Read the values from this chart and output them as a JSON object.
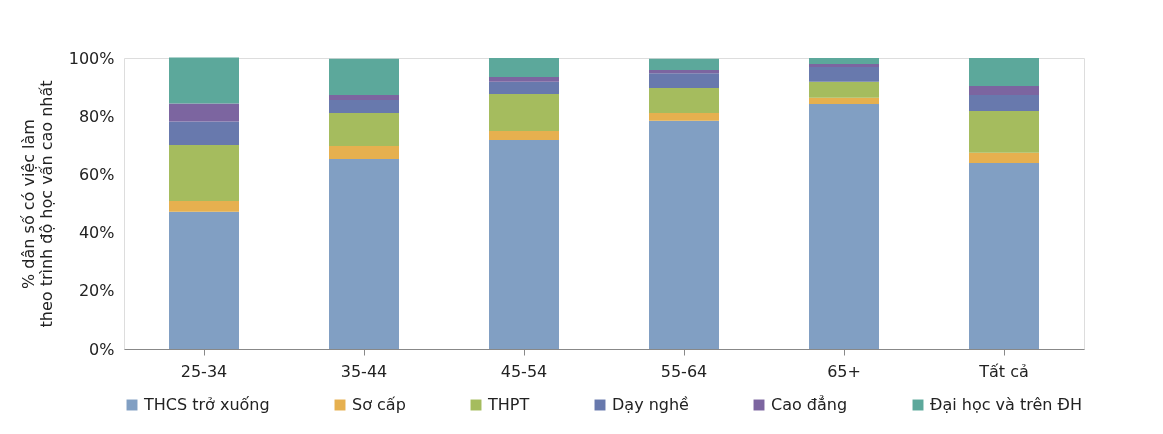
{
  "chart_data": {
    "type": "bar",
    "stacked": true,
    "ylabel": "% dân số có việc làm\ntheo trình độ học vấn cao nhất",
    "categories": [
      "25-34",
      "35-44",
      "45-54",
      "55-64",
      "65+",
      "Tất cả"
    ],
    "series": [
      {
        "name": "THCS trở xuống",
        "color": "#819fc3",
        "values": [
          47.2,
          65.3,
          71.8,
          78.4,
          84.2,
          63.9
        ]
      },
      {
        "name": "Sơ cấp",
        "color": "#e6b04f",
        "values": [
          3.7,
          4.5,
          3.1,
          2.7,
          2.1,
          3.5
        ]
      },
      {
        "name": "THPT",
        "color": "#a5bc5e",
        "values": [
          19.2,
          11.3,
          12.7,
          8.6,
          5.5,
          14.4
        ]
      },
      {
        "name": "Dạy nghề",
        "color": "#6879ad",
        "values": [
          8.1,
          4.5,
          4.2,
          5.1,
          5.1,
          5.5
        ]
      },
      {
        "name": "Cao đẳng",
        "color": "#7c65a0",
        "values": [
          6.2,
          1.7,
          1.7,
          1.1,
          1.0,
          3.1
        ]
      },
      {
        "name": "Đại học và trên ĐH",
        "color": "#5ca89b",
        "values": [
          15.8,
          12.4,
          6.5,
          3.8,
          2.1,
          9.6
        ]
      }
    ],
    "ylim": [
      0,
      100
    ],
    "yticks": [
      {
        "value": 0,
        "label": "0%"
      },
      {
        "value": 20,
        "label": "20%"
      },
      {
        "value": 40,
        "label": "40%"
      },
      {
        "value": 60,
        "label": "60%"
      },
      {
        "value": 80,
        "label": "80%"
      },
      {
        "value": 100,
        "label": "100%"
      }
    ],
    "grid": false,
    "legend": "bottom"
  }
}
